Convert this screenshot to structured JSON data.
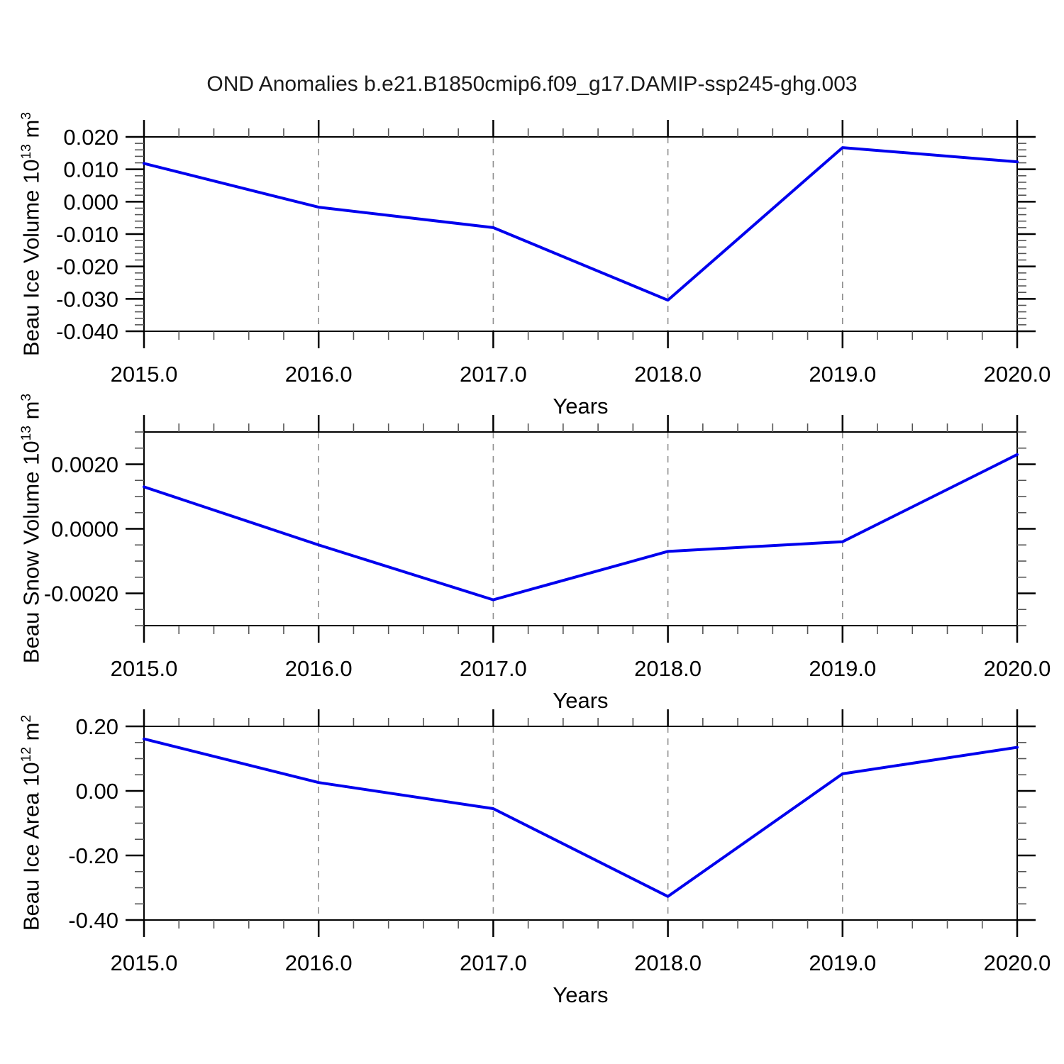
{
  "title": "OND Anomalies b.e21.B1850cmip6.f09_g17.DAMIP-ssp245-ghg.003",
  "line_color": "#0000ee",
  "gridline_color": "#909090",
  "chart_data": [
    {
      "type": "line",
      "panel": "beau-ice-volume",
      "xlabel": "Years",
      "ylabel": {
        "base": "Beau Ice Volume 10",
        "sup": "13",
        "unit": " m",
        "unit_sup": "3"
      },
      "x": [
        2015.0,
        2016.0,
        2017.0,
        2018.0,
        2019.0,
        2020.0
      ],
      "values": [
        0.0118,
        -0.0017,
        -0.008,
        -0.0304,
        0.0167,
        0.0123
      ],
      "xlim": [
        2015.0,
        2020.0
      ],
      "ylim": [
        -0.04,
        0.02
      ],
      "xticks_major": [
        2015,
        2016,
        2017,
        2018,
        2019,
        2020
      ],
      "xtick_labels": [
        "2015.0",
        "2016.0",
        "2017.0",
        "2018.0",
        "2019.0",
        "2020.0"
      ],
      "xtick_minor_step": 0.2,
      "yticks_major": [
        0.02,
        0.01,
        0.0,
        -0.01,
        -0.02,
        -0.03,
        -0.04
      ],
      "ytick_labels": [
        "0.020",
        "0.010",
        "0.000",
        "-0.010",
        "-0.020",
        "-0.030",
        "-0.040"
      ],
      "ytick_minor_step": 0.002,
      "gridlines_x": [
        2016,
        2017,
        2018,
        2019
      ],
      "legend": "none",
      "line_color": "#0000ee"
    },
    {
      "type": "line",
      "panel": "beau-snow-volume",
      "xlabel": "Years",
      "ylabel": {
        "base": "Beau Snow Volume 10",
        "sup": "13",
        "unit": " m",
        "unit_sup": "3"
      },
      "x": [
        2015.0,
        2016.0,
        2017.0,
        2018.0,
        2019.0,
        2020.0
      ],
      "values": [
        0.0013,
        -0.0005,
        -0.0022,
        -0.0007,
        -0.0004,
        0.0023
      ],
      "xlim": [
        2015.0,
        2020.0
      ],
      "ylim": [
        -0.003,
        0.003
      ],
      "xticks_major": [
        2015,
        2016,
        2017,
        2018,
        2019,
        2020
      ],
      "xtick_labels": [
        "2015.0",
        "2016.0",
        "2017.0",
        "2018.0",
        "2019.0",
        "2020.0"
      ],
      "xtick_minor_step": 0.2,
      "yticks_major": [
        0.002,
        0.0,
        -0.002
      ],
      "ytick_labels": [
        "0.0020",
        "0.0000",
        "-0.0020"
      ],
      "ytick_minor_step": 0.0005,
      "gridlines_x": [
        2016,
        2017,
        2018,
        2019
      ],
      "legend": "none",
      "line_color": "#0000ee"
    },
    {
      "type": "line",
      "panel": "beau-ice-area",
      "xlabel": "Years",
      "ylabel": {
        "base": "Beau Ice Area 10",
        "sup": "12",
        "unit": " m",
        "unit_sup": "2"
      },
      "x": [
        2015.0,
        2016.0,
        2017.0,
        2018.0,
        2019.0,
        2020.0
      ],
      "values": [
        0.161,
        0.026,
        -0.055,
        -0.327,
        0.053,
        0.135
      ],
      "xlim": [
        2015.0,
        2020.0
      ],
      "ylim": [
        -0.4,
        0.2
      ],
      "xticks_major": [
        2015,
        2016,
        2017,
        2018,
        2019,
        2020
      ],
      "xtick_labels": [
        "2015.0",
        "2016.0",
        "2017.0",
        "2018.0",
        "2019.0",
        "2020.0"
      ],
      "xtick_minor_step": 0.2,
      "yticks_major": [
        0.2,
        0.0,
        -0.2,
        -0.4
      ],
      "ytick_labels": [
        "0.20",
        "0.00",
        "-0.20",
        "-0.40"
      ],
      "ytick_minor_step": 0.05,
      "gridlines_x": [
        2016,
        2017,
        2018,
        2019
      ],
      "legend": "none",
      "line_color": "#0000ee"
    }
  ]
}
